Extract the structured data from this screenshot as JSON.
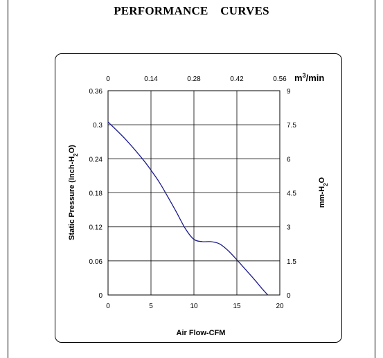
{
  "page": {
    "title": "PERFORMANCE    CURVES"
  },
  "chart_data": {
    "type": "line",
    "xlabel": "Air Flow-CFM",
    "ylabel": "Static Pressure (Inch-H2O)",
    "xlim": [
      0,
      20
    ],
    "ylim": [
      0,
      0.36
    ],
    "x_ticks": [
      "0",
      "5",
      "10",
      "15",
      "20"
    ],
    "y_ticks": [
      "0",
      "0.06",
      "0.12",
      "0.18",
      "0.24",
      "0.3",
      "0.36"
    ],
    "secondary_x": {
      "label": "m3/min",
      "ticks": [
        "0",
        "0.14",
        "0.28",
        "0.42",
        "0.56"
      ]
    },
    "secondary_y": {
      "label": "mm-H2O",
      "ticks": [
        "0",
        "1.5",
        "3",
        "4.5",
        "6",
        "7.5",
        "9"
      ]
    },
    "grid": true,
    "series": [
      {
        "color": "#1a1a8c",
        "x": [
          0,
          2,
          4,
          5,
          6,
          7,
          8,
          9,
          10,
          11,
          12,
          13,
          14,
          15,
          16,
          17,
          18,
          18.6
        ],
        "y": [
          0.305,
          0.275,
          0.24,
          0.22,
          0.198,
          0.172,
          0.145,
          0.117,
          0.098,
          0.094,
          0.094,
          0.09,
          0.078,
          0.062,
          0.045,
          0.028,
          0.01,
          0.0
        ]
      }
    ]
  }
}
